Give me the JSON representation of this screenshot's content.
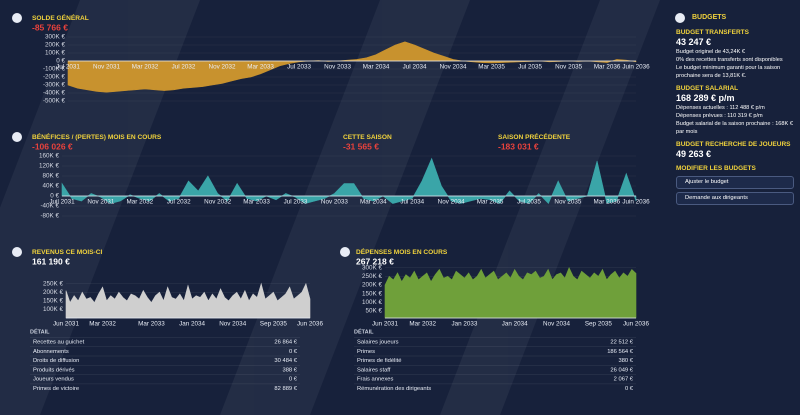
{
  "chart_data": [
    {
      "type": "area",
      "title": "SOLDE GÉNÉRAL",
      "headline": "-85 766 €",
      "headline_color": "#e8423c",
      "color": "#c8922e",
      "grid": true,
      "categories": [
        "Jul 2031",
        null,
        null,
        null,
        "Nov 2031",
        null,
        null,
        null,
        "Mar 2032",
        null,
        null,
        null,
        "Jul 2032",
        null,
        null,
        null,
        "Nov 2032",
        null,
        null,
        null,
        "Mar 2033",
        null,
        null,
        null,
        "Jul 2033",
        null,
        null,
        null,
        "Nov 2033",
        null,
        null,
        null,
        "Mar 2034",
        null,
        null,
        null,
        "Jul 2034",
        null,
        null,
        null,
        "Nov 2034",
        null,
        null,
        null,
        "Mar 2035",
        null,
        null,
        null,
        "Jul 2035",
        null,
        null,
        null,
        "Nov 2035",
        null,
        null,
        null,
        "Mar 2036",
        null,
        null,
        "Juin 2036"
      ],
      "values": [
        -300000,
        -340000,
        -360000,
        -380000,
        -390000,
        -380000,
        -370000,
        -360000,
        -350000,
        -360000,
        -370000,
        -360000,
        -340000,
        -330000,
        -320000,
        -300000,
        -280000,
        -250000,
        -220000,
        -200000,
        -160000,
        -110000,
        -60000,
        -30000,
        -10000,
        0,
        5000,
        -5000,
        0,
        10000,
        20000,
        40000,
        80000,
        140000,
        200000,
        240000,
        200000,
        150000,
        100000,
        60000,
        20000,
        0,
        -10000,
        -20000,
        -25000,
        -20000,
        -15000,
        -10000,
        -5000,
        0,
        -10000,
        -5000,
        0,
        -5000,
        0,
        -10000,
        -20000,
        20000,
        10000,
        -10000
      ],
      "ylim": [
        -500000,
        300000
      ],
      "yticks": [
        {
          "value": 300000,
          "label": "300K €"
        },
        {
          "value": 200000,
          "label": "200K €"
        },
        {
          "value": 100000,
          "label": "100K €"
        },
        {
          "value": 0,
          "label": "0 €"
        },
        {
          "value": -100000,
          "label": "-100K €"
        },
        {
          "value": -200000,
          "label": "-200K €"
        },
        {
          "value": -300000,
          "label": "-300K €"
        },
        {
          "value": -400000,
          "label": "-400K €"
        },
        {
          "value": -500000,
          "label": "-500K €"
        }
      ]
    },
    {
      "type": "area",
      "title": "BÉNÉFICES / (PERTES) MOIS EN COURS",
      "headline": "-106 026 €",
      "headline_color": "#e8423c",
      "color": "#3aa5a8",
      "grid": true,
      "annotations": [
        {
          "label": "CETTE SAISON",
          "value": "-31 565 €"
        },
        {
          "label": "SAISON PRÉCÉDENTE",
          "value": "-183 031 €"
        }
      ],
      "categories": [
        "Juil 2031",
        null,
        null,
        null,
        "Nov 2031",
        null,
        null,
        null,
        "Mar 2032",
        null,
        null,
        null,
        "Jul 2032",
        null,
        null,
        null,
        "Nov 2032",
        null,
        null,
        null,
        "Mar 2033",
        null,
        null,
        null,
        "Jul 2033",
        null,
        null,
        null,
        "Nov 2033",
        null,
        null,
        null,
        "Mar 2034",
        null,
        null,
        null,
        "Jul 2034",
        null,
        null,
        null,
        "Nov 2034",
        null,
        null,
        null,
        "Mar 2035",
        null,
        null,
        null,
        "Jul 2035",
        null,
        null,
        null,
        "Nov 2035",
        null,
        null,
        null,
        "Mar 2036",
        null,
        null,
        "Juin 2036"
      ],
      "values": [
        50000,
        -10000,
        -20000,
        10000,
        -5000,
        -30000,
        -20000,
        5000,
        -10000,
        -20000,
        10000,
        -20000,
        -10000,
        60000,
        20000,
        80000,
        10000,
        -20000,
        50000,
        -10000,
        -20000,
        0,
        -15000,
        10000,
        -5000,
        -30000,
        -20000,
        -10000,
        10000,
        50000,
        50000,
        -10000,
        -20000,
        0,
        -30000,
        -20000,
        -10000,
        60000,
        150000,
        40000,
        -20000,
        -30000,
        -20000,
        -10000,
        -15000,
        -30000,
        20000,
        -20000,
        -30000,
        10000,
        -30000,
        60000,
        -20000,
        -10000,
        0,
        140000,
        -30000,
        -20000,
        90000,
        -20000
      ],
      "ylim": [
        -100000,
        160000
      ],
      "yticks": [
        {
          "value": 160000,
          "label": "160K €"
        },
        {
          "value": 120000,
          "label": "120K €"
        },
        {
          "value": 80000,
          "label": "80K €"
        },
        {
          "value": 40000,
          "label": "40K €"
        },
        {
          "value": 0,
          "label": "0 €"
        },
        {
          "value": -40000,
          "label": "-40K €"
        },
        {
          "value": -80000,
          "label": "-80K €"
        }
      ]
    },
    {
      "type": "area",
      "title": "REVENUS CE MOIS-CI",
      "headline": "161 190 €",
      "headline_color": "#ffffff",
      "color": "#cfcfcf",
      "grid": true,
      "categories": [
        "Jun 2031",
        null,
        null,
        null,
        null,
        null,
        null,
        null,
        null,
        "Mar 2032",
        null,
        null,
        null,
        null,
        null,
        null,
        null,
        null,
        null,
        null,
        null,
        "Mar 2033",
        null,
        null,
        null,
        null,
        null,
        null,
        null,
        null,
        null,
        "Jan 2034",
        null,
        null,
        null,
        null,
        null,
        null,
        null,
        null,
        null,
        "Nov 2034",
        null,
        null,
        null,
        null,
        null,
        null,
        null,
        null,
        null,
        "Sep 2035",
        null,
        null,
        null,
        null,
        null,
        null,
        null,
        null,
        "Jun 2036"
      ],
      "values": [
        210000,
        140000,
        180000,
        150000,
        200000,
        160000,
        170000,
        140000,
        190000,
        230000,
        150000,
        180000,
        160000,
        200000,
        170000,
        150000,
        190000,
        180000,
        160000,
        210000,
        170000,
        140000,
        180000,
        200000,
        150000,
        230000,
        170000,
        160000,
        190000,
        150000,
        240000,
        160000,
        180000,
        170000,
        200000,
        150000,
        190000,
        160000,
        220000,
        170000,
        150000,
        180000,
        200000,
        160000,
        210000,
        150000,
        190000,
        170000,
        250000,
        160000,
        180000,
        200000,
        150000,
        170000,
        190000,
        230000,
        160000,
        180000,
        200000,
        250000,
        161190
      ],
      "ylim": [
        50000,
        330000
      ],
      "yticks": [
        {
          "value": 250000,
          "label": "250K €"
        },
        {
          "value": 200000,
          "label": "200K €"
        },
        {
          "value": 150000,
          "label": "150K €"
        },
        {
          "value": 100000,
          "label": "100K €"
        }
      ]
    },
    {
      "type": "area",
      "title": "DÉPENSES MOIS EN COURS",
      "headline": "267 218 €",
      "headline_color": "#ffffff",
      "color": "#6fa03a",
      "grid": true,
      "categories": [
        "Jun 2031",
        null,
        null,
        null,
        null,
        null,
        null,
        null,
        null,
        "Mar 2032",
        null,
        null,
        null,
        null,
        null,
        null,
        null,
        null,
        null,
        "Jan 2033",
        null,
        null,
        null,
        null,
        null,
        null,
        null,
        null,
        null,
        null,
        null,
        "Jan 2034",
        null,
        null,
        null,
        null,
        null,
        null,
        null,
        null,
        null,
        "Nov 2034",
        null,
        null,
        null,
        null,
        null,
        null,
        null,
        null,
        null,
        "Sep 2035",
        null,
        null,
        null,
        null,
        null,
        null,
        null,
        null,
        "Jun 2036"
      ],
      "values": [
        200000,
        250000,
        230000,
        270000,
        220000,
        260000,
        240000,
        280000,
        230000,
        250000,
        270000,
        220000,
        260000,
        290000,
        240000,
        250000,
        230000,
        280000,
        260000,
        240000,
        270000,
        230000,
        250000,
        290000,
        240000,
        260000,
        280000,
        230000,
        250000,
        270000,
        240000,
        290000,
        250000,
        230000,
        270000,
        260000,
        280000,
        240000,
        250000,
        290000,
        230000,
        260000,
        270000,
        240000,
        300000,
        250000,
        230000,
        280000,
        260000,
        240000,
        270000,
        250000,
        290000,
        230000,
        260000,
        280000,
        240000,
        270000,
        250000,
        290000,
        267218
      ],
      "ylim": [
        10000,
        310000
      ],
      "yticks": [
        {
          "value": 300000,
          "label": "300K €"
        },
        {
          "value": 250000,
          "label": "250K €"
        },
        {
          "value": 200000,
          "label": "200K €"
        },
        {
          "value": 150000,
          "label": "150K €"
        },
        {
          "value": 100000,
          "label": "100K €"
        },
        {
          "value": 50000,
          "label": "50K €"
        }
      ]
    }
  ],
  "details": [
    {
      "title": "DÉTAIL",
      "rows": [
        [
          "Recettes au guichet",
          "26 864 €"
        ],
        [
          "Abonnements",
          "0 €"
        ],
        [
          "Droits de diffusion",
          "30 484 €"
        ],
        [
          "Produits dérivés",
          "388 €"
        ],
        [
          "Joueurs vendus",
          "0 €"
        ],
        [
          "Primes de victoire",
          "82 889 €"
        ]
      ]
    },
    {
      "title": "DÉTAIL",
      "rows": [
        [
          "Salaires joueurs",
          "22 512 €"
        ],
        [
          "Primes",
          "186 564 €"
        ],
        [
          "Primes de fidélité",
          "380 €"
        ],
        [
          "Salaires staff",
          "26 049 €"
        ],
        [
          "Frais annexes",
          "2 067 €"
        ],
        [
          "Rémunération des dirigeants",
          "0 €"
        ]
      ]
    }
  ],
  "budgets": {
    "title": "BUDGETS",
    "transfer": {
      "title": "BUDGET TRANSFERTS",
      "amount": "43 247 €",
      "notes": [
        "Budget originel de 43,24K €",
        "0% des recettes transferts sont disponibles",
        "Le budget minimum garanti pour la saison prochaine sera de 13,81K €."
      ]
    },
    "wage": {
      "title": "BUDGET SALARIAL",
      "amount": "168 289 € p/m",
      "notes": [
        "Dépenses actuelles : 112 488 € p/m",
        "Dépenses prévues : 110 319 € p/m",
        "Budget salarial de la saison prochaine : 168K € par mois"
      ]
    },
    "scouting": {
      "title": "BUDGET RECHERCHE DE JOUEURS",
      "amount": "49 263 €"
    },
    "modify": {
      "title": "MODIFIER LES BUDGETS",
      "buttons": [
        "Ajuster le budget",
        "Demande aux dirigeants"
      ]
    }
  }
}
